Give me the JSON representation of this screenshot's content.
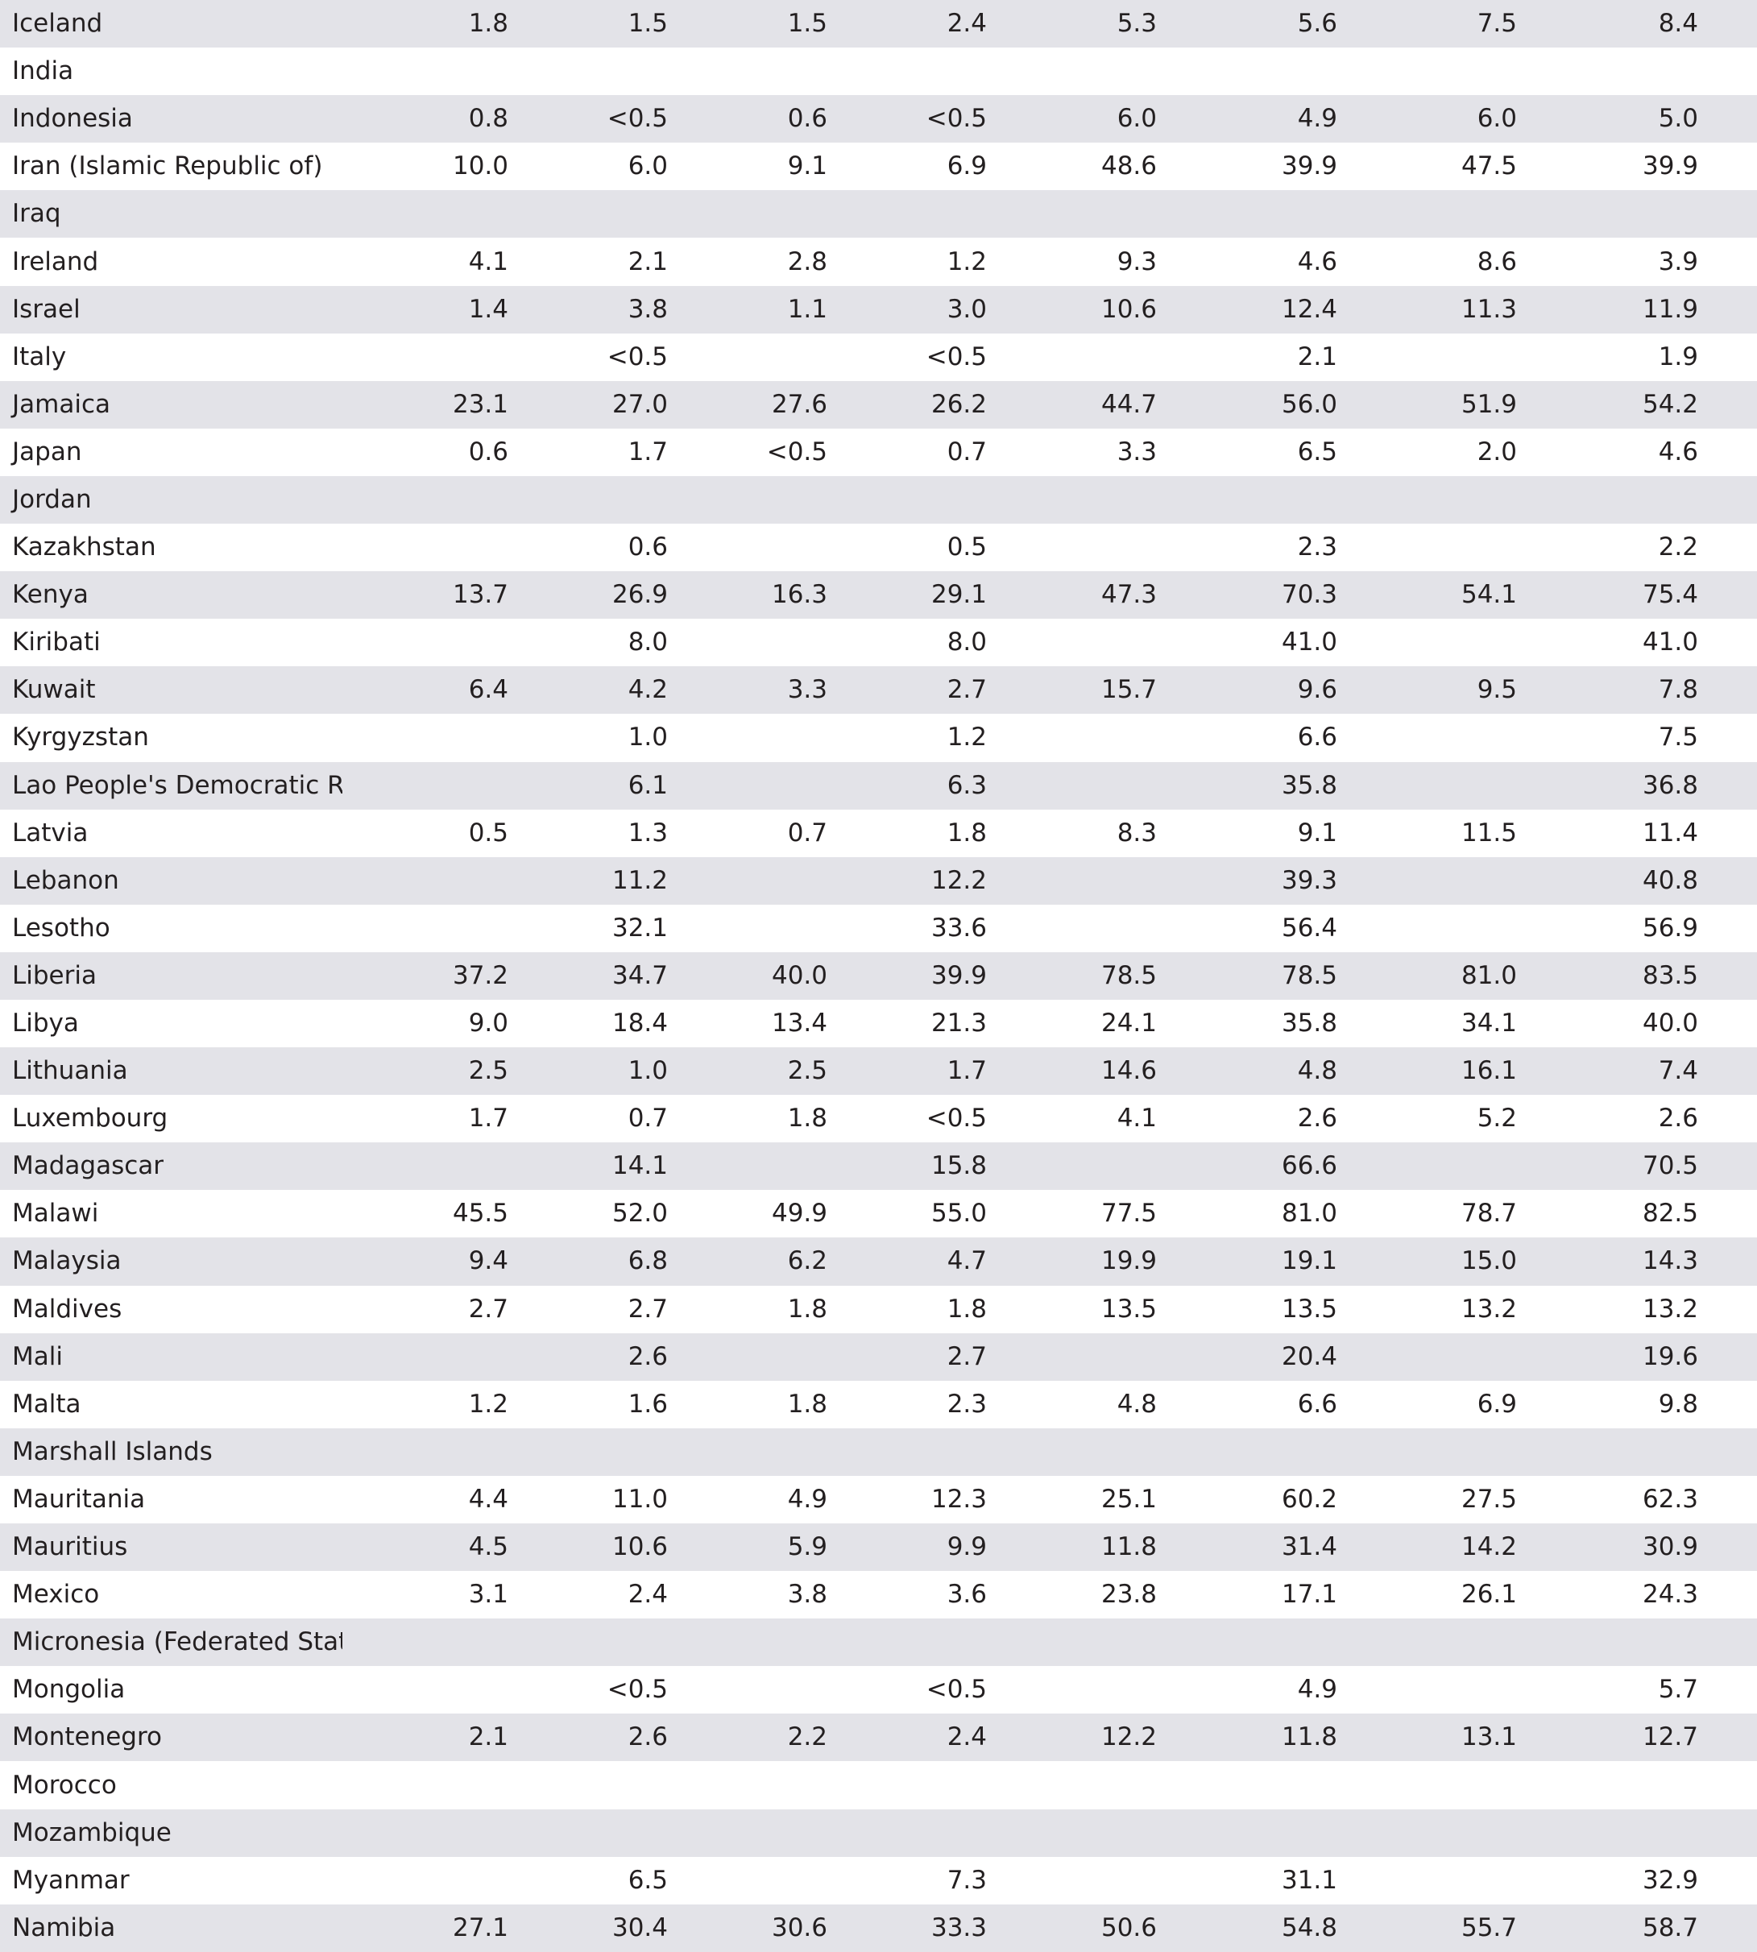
{
  "colors": {
    "shaded_row": "#e3e3e8",
    "plain_row": "#ffffff",
    "text": "#231f20"
  },
  "rows": [
    {
      "country": "Iceland",
      "values": [
        "1.8",
        "1.5",
        "1.5",
        "2.4",
        "5.3",
        "5.6",
        "7.5",
        "8.4"
      ]
    },
    {
      "country": "India",
      "values": [
        "",
        "",
        "",
        "",
        "",
        "",
        "",
        ""
      ]
    },
    {
      "country": "Indonesia",
      "values": [
        "0.8",
        "<0.5",
        "0.6",
        "<0.5",
        "6.0",
        "4.9",
        "6.0",
        "5.0"
      ]
    },
    {
      "country": "Iran (Islamic Republic of)",
      "values": [
        "10.0",
        "6.0",
        "9.1",
        "6.9",
        "48.6",
        "39.9",
        "47.5",
        "39.9"
      ]
    },
    {
      "country": "Iraq",
      "values": [
        "",
        "",
        "",
        "",
        "",
        "",
        "",
        ""
      ]
    },
    {
      "country": "Ireland",
      "values": [
        "4.1",
        "2.1",
        "2.8",
        "1.2",
        "9.3",
        "4.6",
        "8.6",
        "3.9"
      ]
    },
    {
      "country": "Israel",
      "values": [
        "1.4",
        "3.8",
        "1.1",
        "3.0",
        "10.6",
        "12.4",
        "11.3",
        "11.9"
      ]
    },
    {
      "country": "Italy",
      "values": [
        "",
        "<0.5",
        "",
        "<0.5",
        "",
        "2.1",
        "",
        "1.9"
      ]
    },
    {
      "country": "Jamaica",
      "values": [
        "23.1",
        "27.0",
        "27.6",
        "26.2",
        "44.7",
        "56.0",
        "51.9",
        "54.2"
      ]
    },
    {
      "country": "Japan",
      "values": [
        "0.6",
        "1.7",
        "<0.5",
        "0.7",
        "3.3",
        "6.5",
        "2.0",
        "4.6"
      ]
    },
    {
      "country": "Jordan",
      "values": [
        "",
        "",
        "",
        "",
        "",
        "",
        "",
        ""
      ]
    },
    {
      "country": "Kazakhstan",
      "values": [
        "",
        "0.6",
        "",
        "0.5",
        "",
        "2.3",
        "",
        "2.2"
      ]
    },
    {
      "country": "Kenya",
      "values": [
        "13.7",
        "26.9",
        "16.3",
        "29.1",
        "47.3",
        "70.3",
        "54.1",
        "75.4"
      ]
    },
    {
      "country": "Kiribati",
      "values": [
        "",
        "8.0",
        "",
        "8.0",
        "",
        "41.0",
        "",
        "41.0"
      ]
    },
    {
      "country": "Kuwait",
      "values": [
        "6.4",
        "4.2",
        "3.3",
        "2.7",
        "15.7",
        "9.6",
        "9.5",
        "7.8"
      ]
    },
    {
      "country": "Kyrgyzstan",
      "values": [
        "",
        "1.0",
        "",
        "1.2",
        "",
        "6.6",
        "",
        "7.5"
      ]
    },
    {
      "country": "Lao People's Democratic Republic",
      "values": [
        "",
        "6.1",
        "",
        "6.3",
        "",
        "35.8",
        "",
        "36.8"
      ]
    },
    {
      "country": "Latvia",
      "values": [
        "0.5",
        "1.3",
        "0.7",
        "1.8",
        "8.3",
        "9.1",
        "11.5",
        "11.4"
      ]
    },
    {
      "country": "Lebanon",
      "values": [
        "",
        "11.2",
        "",
        "12.2",
        "",
        "39.3",
        "",
        "40.8"
      ]
    },
    {
      "country": "Lesotho",
      "values": [
        "",
        "32.1",
        "",
        "33.6",
        "",
        "56.4",
        "",
        "56.9"
      ]
    },
    {
      "country": "Liberia",
      "values": [
        "37.2",
        "34.7",
        "40.0",
        "39.9",
        "78.5",
        "78.5",
        "81.0",
        "83.5"
      ]
    },
    {
      "country": "Libya",
      "values": [
        "9.0",
        "18.4",
        "13.4",
        "21.3",
        "24.1",
        "35.8",
        "34.1",
        "40.0"
      ]
    },
    {
      "country": "Lithuania",
      "values": [
        "2.5",
        "1.0",
        "2.5",
        "1.7",
        "14.6",
        "4.8",
        "16.1",
        "7.4"
      ]
    },
    {
      "country": "Luxembourg",
      "values": [
        "1.7",
        "0.7",
        "1.8",
        "<0.5",
        "4.1",
        "2.6",
        "5.2",
        "2.6"
      ]
    },
    {
      "country": "Madagascar",
      "values": [
        "",
        "14.1",
        "",
        "15.8",
        "",
        "66.6",
        "",
        "70.5"
      ]
    },
    {
      "country": "Malawi",
      "values": [
        "45.5",
        "52.0",
        "49.9",
        "55.0",
        "77.5",
        "81.0",
        "78.7",
        "82.5"
      ]
    },
    {
      "country": "Malaysia",
      "values": [
        "9.4",
        "6.8",
        "6.2",
        "4.7",
        "19.9",
        "19.1",
        "15.0",
        "14.3"
      ]
    },
    {
      "country": "Maldives",
      "values": [
        "2.7",
        "2.7",
        "1.8",
        "1.8",
        "13.5",
        "13.5",
        "13.2",
        "13.2"
      ]
    },
    {
      "country": "Mali",
      "values": [
        "",
        "2.6",
        "",
        "2.7",
        "",
        "20.4",
        "",
        "19.6"
      ]
    },
    {
      "country": "Malta",
      "values": [
        "1.2",
        "1.6",
        "1.8",
        "2.3",
        "4.8",
        "6.6",
        "6.9",
        "9.8"
      ]
    },
    {
      "country": "Marshall Islands",
      "values": [
        "",
        "",
        "",
        "",
        "",
        "",
        "",
        ""
      ]
    },
    {
      "country": "Mauritania",
      "values": [
        "4.4",
        "11.0",
        "4.9",
        "12.3",
        "25.1",
        "60.2",
        "27.5",
        "62.3"
      ]
    },
    {
      "country": "Mauritius",
      "values": [
        "4.5",
        "10.6",
        "5.9",
        "9.9",
        "11.8",
        "31.4",
        "14.2",
        "30.9"
      ]
    },
    {
      "country": "Mexico",
      "values": [
        "3.1",
        "2.4",
        "3.8",
        "3.6",
        "23.8",
        "17.1",
        "26.1",
        "24.3"
      ]
    },
    {
      "country": "Micronesia (Federated States of)",
      "values": [
        "",
        "",
        "",
        "",
        "",
        "",
        "",
        ""
      ]
    },
    {
      "country": "Mongolia",
      "values": [
        "",
        "<0.5",
        "",
        "<0.5",
        "",
        "4.9",
        "",
        "5.7"
      ]
    },
    {
      "country": "Montenegro",
      "values": [
        "2.1",
        "2.6",
        "2.2",
        "2.4",
        "12.2",
        "11.8",
        "13.1",
        "12.7"
      ]
    },
    {
      "country": "Morocco",
      "values": [
        "",
        "",
        "",
        "",
        "",
        "",
        "",
        ""
      ]
    },
    {
      "country": "Mozambique",
      "values": [
        "",
        "",
        "",
        "",
        "",
        "",
        "",
        ""
      ]
    },
    {
      "country": "Myanmar",
      "values": [
        "",
        "6.5",
        "",
        "7.3",
        "",
        "31.1",
        "",
        "32.9"
      ]
    },
    {
      "country": "Namibia",
      "values": [
        "27.1",
        "30.4",
        "30.6",
        "33.3",
        "50.6",
        "54.8",
        "55.7",
        "58.7"
      ]
    }
  ]
}
